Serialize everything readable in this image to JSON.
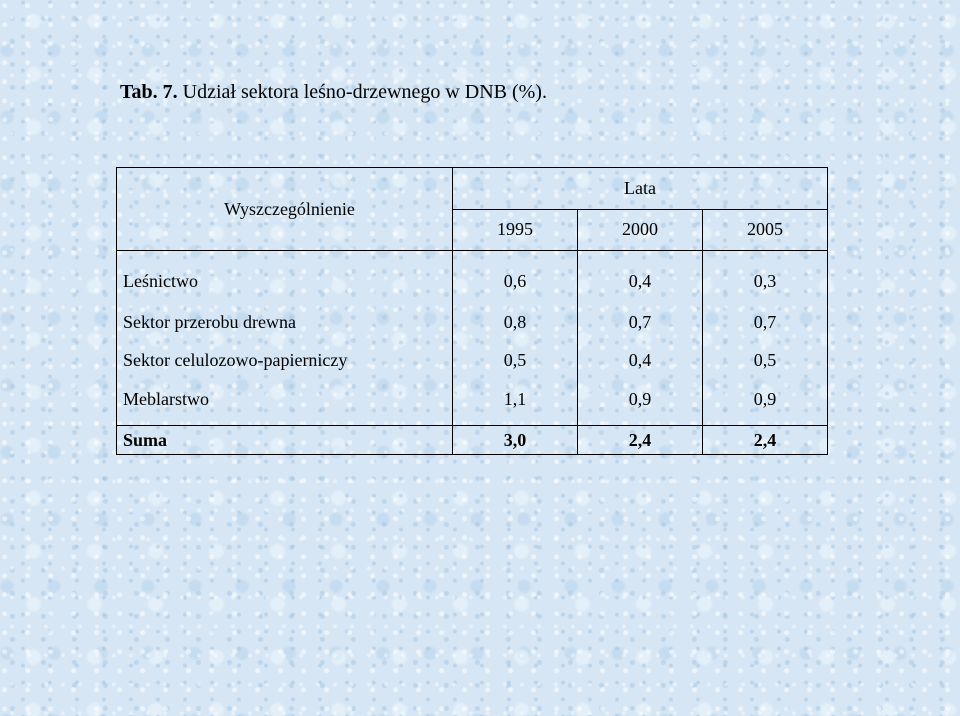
{
  "title": {
    "label": "Tab. 7.",
    "text": " Udział sektora leśno-drzewnego w DNB (%)."
  },
  "table": {
    "header_desc": "Wyszczególnienie",
    "header_group": "Lata",
    "years": [
      "1995",
      "2000",
      "2005"
    ],
    "rows": [
      {
        "name": "Leśnictwo",
        "values": [
          "0,6",
          "0,4",
          "0,3"
        ]
      },
      {
        "name": "Sektor przerobu drewna",
        "values": [
          "0,8",
          "0,7",
          "0,7"
        ]
      },
      {
        "name": "Sektor celulozowo-papierniczy",
        "values": [
          "0,5",
          "0,4",
          "0,5"
        ]
      },
      {
        "name": "Meblarstwo",
        "values": [
          "1,1",
          "0,9",
          "0,9"
        ]
      }
    ],
    "total": {
      "name": "Suma",
      "values": [
        "3,0",
        "2,4",
        "2,4"
      ]
    }
  },
  "colors": {
    "background": "#d6e6f4",
    "text": "#000000",
    "border": "#000000"
  }
}
